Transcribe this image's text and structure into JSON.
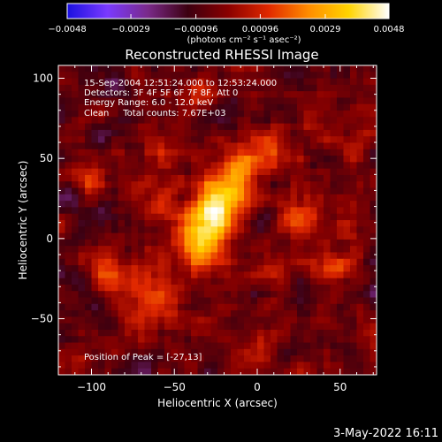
{
  "chart_data": {
    "type": "heatmap",
    "title": "Reconstructed RHESSI Image",
    "xlabel": "Heliocentric X (arcsec)",
    "ylabel": "Heliocentric Y (arcsec)",
    "xlim": [
      -120,
      72
    ],
    "ylim": [
      -85,
      108
    ],
    "xticks": [
      -100,
      -50,
      0,
      50
    ],
    "xtick_labels": [
      "−100",
      "−50",
      "0",
      "50"
    ],
    "yticks": [
      -50,
      0,
      50,
      100
    ],
    "ytick_labels": [
      "−50",
      "0",
      "50",
      "100"
    ],
    "colorbar": {
      "range": [
        -0.0048,
        0.0048
      ],
      "ticks": [
        -0.0048,
        -0.0029,
        -0.00096,
        0.00096,
        0.0029,
        0.0048
      ],
      "tick_labels": [
        "−0.0048",
        "−0.0029",
        "−0.00096",
        "0.00096",
        "0.0029",
        "0.0048"
      ],
      "unit_label": "(photons cm⁻² s⁻¹ asec⁻²)",
      "colors": [
        "#1a10e0",
        "#7a3aff",
        "#7a2a8a",
        "#3c0010",
        "#8a0000",
        "#e02800",
        "#ff8c00",
        "#ffd400",
        "#ffffff"
      ]
    },
    "annotations": [
      "15-Sep-2004 12:51:24.000 to 12:53:24.000",
      "Detectors: 3F 4F 5F 6F 7F 8F, Att 0",
      "Energy Range: 6.0 - 12.0 keV",
      "Clean     Total counts: 7.67E+03"
    ],
    "peak_label": "Position of Peak = [-27,13]",
    "peak": [
      -27,
      13
    ],
    "image_features": {
      "grid": [
        48,
        48
      ],
      "background_level": -0.0006,
      "blobs": [
        {
          "x": -27,
          "y": 13,
          "sigma": 12,
          "amp": 0.004
        },
        {
          "x": -35,
          "y": -5,
          "sigma": 11,
          "amp": 0.003
        },
        {
          "x": -20,
          "y": 30,
          "sigma": 10,
          "amp": 0.0028
        },
        {
          "x": -8,
          "y": 45,
          "sigma": 9,
          "amp": 0.0024
        },
        {
          "x": 8,
          "y": 60,
          "sigma": 8,
          "amp": 0.002
        },
        {
          "x": -55,
          "y": 55,
          "sigma": 9,
          "amp": 0.0018
        },
        {
          "x": -65,
          "y": 22,
          "sigma": 10,
          "amp": 0.0012
        },
        {
          "x": -75,
          "y": -30,
          "sigma": 12,
          "amp": 0.0016
        },
        {
          "x": -95,
          "y": -20,
          "sigma": 8,
          "amp": 0.0014
        },
        {
          "x": -100,
          "y": 38,
          "sigma": 7,
          "amp": 0.0016
        },
        {
          "x": -60,
          "y": -45,
          "sigma": 10,
          "amp": 0.0014
        },
        {
          "x": 45,
          "y": -20,
          "sigma": 10,
          "amp": 0.0018
        },
        {
          "x": 55,
          "y": 10,
          "sigma": 7,
          "amp": 0.0014
        },
        {
          "x": 25,
          "y": 12,
          "sigma": 9,
          "amp": 0.0016
        },
        {
          "x": 15,
          "y": -15,
          "sigma": 8,
          "amp": 0.0012
        },
        {
          "x": 35,
          "y": 80,
          "sigma": 9,
          "amp": 0.0012
        },
        {
          "x": 60,
          "y": 55,
          "sigma": 8,
          "amp": 0.0012
        },
        {
          "x": -40,
          "y": 90,
          "sigma": 10,
          "amp": 0.0012
        },
        {
          "x": 0,
          "y": -65,
          "sigma": 10,
          "amp": 0.001
        }
      ]
    }
  },
  "footer": {
    "timestamp": "3-May-2022 16:11"
  }
}
